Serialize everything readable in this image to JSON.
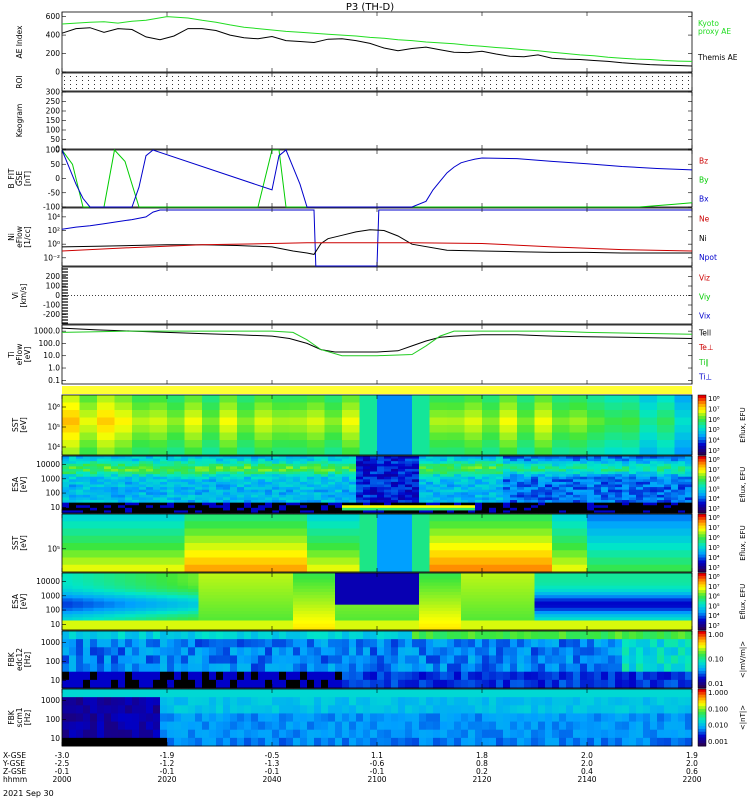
{
  "title": "P3 (TH-D)",
  "date_label": "2021 Sep 30",
  "colors": {
    "green": "#00cc00",
    "black": "#000000",
    "red": "#cc0000",
    "blue": "#0000cc",
    "kyoto": "#22dd22",
    "temp_green": "#22cc22"
  },
  "chart_data": [
    {
      "panel": "ae",
      "type": "line",
      "ylabel": "AE Index",
      "ylim": [
        0,
        650
      ],
      "yticks": [
        "600",
        "400",
        "200",
        "0"
      ],
      "ytick_values": [
        600,
        400,
        200,
        0
      ],
      "legend": [
        "Kyoto proxy AE",
        "Themis AE"
      ],
      "legend_lines": [
        "Kyoto",
        "proxy AE",
        "Themis AE"
      ],
      "series": [
        {
          "name": "Kyoto proxy AE",
          "color": "#22dd22",
          "x": [
            0,
            4,
            8,
            12,
            16,
            20,
            24,
            30,
            36,
            40,
            44,
            48,
            52,
            56,
            60,
            64,
            68,
            72,
            76,
            80,
            84,
            88,
            92,
            96,
            100,
            104,
            108,
            112,
            116,
            120,
            124,
            128,
            132,
            136,
            140,
            144,
            148,
            152,
            156,
            160,
            164,
            168,
            172,
            176,
            180
          ],
          "values": [
            520,
            530,
            540,
            545,
            530,
            550,
            560,
            600,
            585,
            560,
            540,
            510,
            485,
            470,
            455,
            440,
            430,
            420,
            410,
            400,
            390,
            375,
            365,
            350,
            340,
            325,
            315,
            305,
            290,
            280,
            265,
            255,
            240,
            230,
            215,
            200,
            185,
            175,
            160,
            150,
            140,
            135,
            125,
            118,
            115
          ]
        },
        {
          "name": "Themis AE",
          "color": "#000000",
          "x": [
            0,
            4,
            8,
            12,
            16,
            20,
            24,
            28,
            32,
            36,
            40,
            44,
            48,
            52,
            56,
            60,
            64,
            68,
            72,
            76,
            80,
            84,
            88,
            92,
            96,
            100,
            104,
            108,
            112,
            116,
            120,
            124,
            128,
            132,
            136,
            140,
            144,
            148,
            152,
            156,
            160,
            164,
            168,
            172,
            176,
            180
          ],
          "values": [
            420,
            470,
            480,
            430,
            470,
            460,
            380,
            350,
            390,
            470,
            470,
            450,
            400,
            370,
            360,
            385,
            340,
            330,
            320,
            355,
            360,
            340,
            310,
            260,
            230,
            255,
            270,
            240,
            215,
            210,
            225,
            195,
            170,
            165,
            185,
            150,
            140,
            135,
            125,
            115,
            100,
            90,
            80,
            75,
            70,
            65
          ]
        }
      ]
    },
    {
      "panel": "roi",
      "type": "scatter",
      "ylabel": "ROI",
      "note_rows": 4
    },
    {
      "panel": "kpgram",
      "type": "line",
      "ylabel": "Keogram",
      "ylim": [
        0,
        300
      ],
      "yticks": [
        "300",
        "250",
        "200",
        "150",
        "100",
        "50",
        "0"
      ],
      "ytick_values": [
        300,
        250,
        200,
        150,
        100,
        50,
        0
      ]
    },
    {
      "panel": "bfit",
      "type": "line",
      "ylabel_lines": [
        "B_FIT",
        "GSE",
        "[nT]"
      ],
      "ylim": [
        -100,
        100
      ],
      "yticks": [
        "100",
        "50",
        "0",
        "-50",
        "-100"
      ],
      "ytick_values": [
        100,
        50,
        0,
        -50,
        -100
      ],
      "legend": [
        "Bz",
        "By",
        "Bx"
      ],
      "series": [
        {
          "name": "By",
          "color": "#00cc00",
          "x": [
            0,
            3,
            6,
            12,
            15,
            18,
            22,
            56,
            60,
            62,
            64,
            66,
            69,
            165,
            170,
            175,
            180
          ],
          "values": [
            100,
            50,
            -100,
            -100,
            100,
            60,
            -100,
            -100,
            100,
            100,
            -100,
            -100,
            -100,
            -100,
            -95,
            -90,
            -85
          ]
        },
        {
          "name": "Bx",
          "color": "#0000cc",
          "x": [
            0,
            2,
            4,
            6,
            8,
            20,
            22,
            24,
            26,
            60,
            62,
            64,
            66,
            68,
            70,
            100,
            104,
            106,
            108,
            110,
            112,
            114,
            116,
            118,
            120,
            130,
            140,
            150,
            160,
            170,
            180
          ],
          "values": [
            100,
            40,
            -20,
            -70,
            -100,
            -100,
            -30,
            80,
            100,
            -40,
            80,
            100,
            40,
            -20,
            -100,
            -100,
            -80,
            -40,
            -10,
            20,
            40,
            55,
            62,
            68,
            72,
            70,
            60,
            52,
            42,
            35,
            30
          ]
        }
      ]
    },
    {
      "panel": "density",
      "type": "line",
      "ylabel_lines": [
        "Ni",
        "eFlow",
        "[1/cc]"
      ],
      "ylim_log10": [
        -3.2,
        5.3
      ],
      "yticks": [
        "10⁴",
        "10²",
        "10⁰",
        "10⁻²"
      ],
      "ytick_values": [
        4,
        2,
        0,
        -2
      ],
      "legend": [
        "Ne",
        "Ni",
        "Npot"
      ],
      "series": [
        {
          "name": "Npot",
          "color": "#0000cc",
          "x": [
            0,
            4,
            8,
            12,
            16,
            20,
            24,
            26,
            28,
            30,
            72,
            72.5,
            73,
            90,
            90.5,
            91,
            180
          ],
          "values": [
            2.2,
            2.5,
            2.7,
            3.0,
            3.3,
            3.6,
            4.0,
            4.7,
            5.0,
            5.0,
            5.0,
            -3.5,
            -3.5,
            -3.5,
            5.0,
            5.0,
            5.0
          ]
        },
        {
          "name": "Ni",
          "color": "#000000",
          "x": [
            0,
            10,
            20,
            30,
            40,
            50,
            60,
            66,
            70,
            72,
            74,
            76,
            80,
            84,
            88,
            92,
            96,
            100,
            110,
            120,
            130,
            140,
            150,
            160,
            170,
            180
          ],
          "values": [
            -0.4,
            -0.3,
            -0.2,
            -0.1,
            -0.1,
            -0.2,
            -0.4,
            -1.0,
            -1.3,
            -1.5,
            0.1,
            0.8,
            1.3,
            1.8,
            2.1,
            2.0,
            1.2,
            0.0,
            -0.9,
            -1.0,
            -1.1,
            -1.2,
            -1.2,
            -1.3,
            -1.3,
            -1.3
          ]
        },
        {
          "name": "Ne",
          "color": "#cc0000",
          "x": [
            0,
            20,
            40,
            60,
            70,
            80,
            90,
            100,
            120,
            140,
            160,
            180
          ],
          "values": [
            -1.0,
            -0.5,
            -0.1,
            0.1,
            0.2,
            0.2,
            0.2,
            0.2,
            0.1,
            -0.4,
            -0.8,
            -1.0
          ]
        }
      ]
    },
    {
      "panel": "velocity",
      "type": "line",
      "ylabel_lines": [
        "Vi",
        "[km/s]"
      ],
      "ylim": [
        -300,
        300
      ],
      "yticks": [
        "200",
        "100",
        "0",
        "-100",
        "-200"
      ],
      "ytick_values": [
        200,
        100,
        0,
        -100,
        -200
      ],
      "legend": [
        "Viz",
        "Viy",
        "Vix"
      ],
      "legend_colors": [
        "#cc0000",
        "#00cc00",
        "#0000cc"
      ]
    },
    {
      "panel": "temperature",
      "type": "line",
      "ylabel_lines": [
        "Ti",
        "eFlow",
        "[eV]"
      ],
      "ylim_log10": [
        -1.3,
        3.5
      ],
      "yticks": [
        "1000.0",
        "100.0",
        "10.0",
        "1.0",
        "0.1"
      ],
      "ytick_values": [
        3,
        2,
        1,
        0,
        -1
      ],
      "legend": [
        "Tell",
        "Te⊥",
        "Ti∥",
        "Ti⊥"
      ],
      "legend_colors": [
        "#000000",
        "#cc0000",
        "#22cc22",
        "#0000cc"
      ],
      "series": [
        {
          "name": "Tell",
          "color": "#000000",
          "x": [
            0,
            10,
            20,
            30,
            40,
            50,
            60,
            65,
            70,
            74,
            78,
            84,
            90,
            96,
            100,
            104,
            108,
            112,
            120,
            130,
            140,
            150,
            160,
            170,
            180
          ],
          "values": [
            3.25,
            3.1,
            3.0,
            2.9,
            2.8,
            2.7,
            2.6,
            2.4,
            2.0,
            1.5,
            1.3,
            1.3,
            1.3,
            1.4,
            1.8,
            2.2,
            2.5,
            2.6,
            2.7,
            2.7,
            2.6,
            2.55,
            2.5,
            2.45,
            2.4
          ]
        },
        {
          "name": "Ti∥",
          "color": "#22cc22",
          "x": [
            0,
            10,
            20,
            30,
            40,
            50,
            60,
            66,
            70,
            74,
            80,
            90,
            100,
            104,
            108,
            112,
            120,
            130,
            140,
            150,
            160,
            170,
            180
          ],
          "values": [
            2.9,
            2.95,
            3.0,
            3.0,
            3.0,
            3.0,
            3.0,
            2.9,
            2.3,
            1.5,
            1.0,
            1.0,
            1.1,
            1.8,
            2.6,
            3.0,
            3.0,
            3.0,
            3.0,
            2.9,
            2.85,
            2.8,
            2.75
          ]
        }
      ]
    },
    {
      "panel": "sst_ion",
      "type": "heatmap",
      "ylabel_lines": [
        "SST",
        "[eV]"
      ],
      "yticks": [
        "10⁶",
        "10⁵",
        "10⁴"
      ],
      "colorbar_ticks": [
        "10⁸",
        "10⁷",
        "10⁶",
        "10⁵",
        "10⁴",
        "10³"
      ],
      "colorbar_label": "Eflux, EFU"
    },
    {
      "panel": "esa_ion",
      "type": "heatmap",
      "ylabel_lines": [
        "ESA",
        "[eV]"
      ],
      "yticks": [
        "10000",
        "1000",
        "100",
        "10"
      ],
      "colorbar_ticks": [
        "10⁸",
        "10⁷",
        "10⁶",
        "10⁵",
        "10⁴",
        "10³"
      ],
      "colorbar_label": "Eflux, EFU"
    },
    {
      "panel": "sst_elec",
      "type": "heatmap",
      "ylabel_lines": [
        "SST",
        "[eV]"
      ],
      "yticks": [
        "10⁵"
      ],
      "colorbar_ticks": [
        "10⁸",
        "10⁷",
        "10⁶",
        "10⁵",
        "10⁴",
        "10³"
      ],
      "colorbar_label": "Eflux, EFU"
    },
    {
      "panel": "esa_elec",
      "type": "heatmap",
      "ylabel_lines": [
        "ESA",
        "[eV]"
      ],
      "yticks": [
        "10000",
        "1000",
        "100",
        "10"
      ],
      "colorbar_ticks": [
        "10⁸",
        "10⁷",
        "10⁶",
        "10⁵",
        "10⁴",
        "10³"
      ],
      "colorbar_label": "Eflux, EFU"
    },
    {
      "panel": "fbk_edc12",
      "type": "heatmap",
      "ylabel_lines": [
        "FBK",
        "edc12",
        "[Hz]"
      ],
      "yticks": [
        "1000",
        "100",
        "10"
      ],
      "colorbar_ticks": [
        "1.00",
        "0.10",
        "0.01"
      ],
      "colorbar_label": "<|mV/m|>"
    },
    {
      "panel": "fbk_scm1",
      "type": "heatmap",
      "ylabel_lines": [
        "FBK",
        "scm1",
        "[Hz]"
      ],
      "yticks": [
        "1000",
        "100",
        "10"
      ],
      "colorbar_ticks": [
        "1.000",
        "0.100",
        "0.010",
        "0.001"
      ],
      "colorbar_label": "<|nT|>"
    }
  ],
  "xaxis": {
    "row_labels": [
      "X-GSE",
      "Y-GSE",
      "Z-GSE",
      "hhmm"
    ],
    "ticks": [
      {
        "t": 0,
        "rows": [
          "-3.0",
          "-2.5",
          "-0.1",
          "2000"
        ]
      },
      {
        "t": 30,
        "rows": [
          "-1.9",
          "-1.2",
          "-0.1",
          "2020"
        ]
      },
      {
        "t": 60,
        "rows": [
          "-0.5",
          "-1.3",
          "-0.1",
          "2040"
        ]
      },
      {
        "t": 90,
        "rows": [
          "1.1",
          "-0.6",
          "-0.1",
          "2100"
        ]
      },
      {
        "t": 120,
        "rows": [
          "1.8",
          "0.8",
          "0.2",
          "2120"
        ]
      },
      {
        "t": 150,
        "rows": [
          "2.0",
          "2.0",
          "0.4",
          "2140"
        ]
      },
      {
        "t": 180,
        "rows": [
          "1.9",
          "2.0",
          "0.6",
          "2200"
        ]
      }
    ]
  }
}
